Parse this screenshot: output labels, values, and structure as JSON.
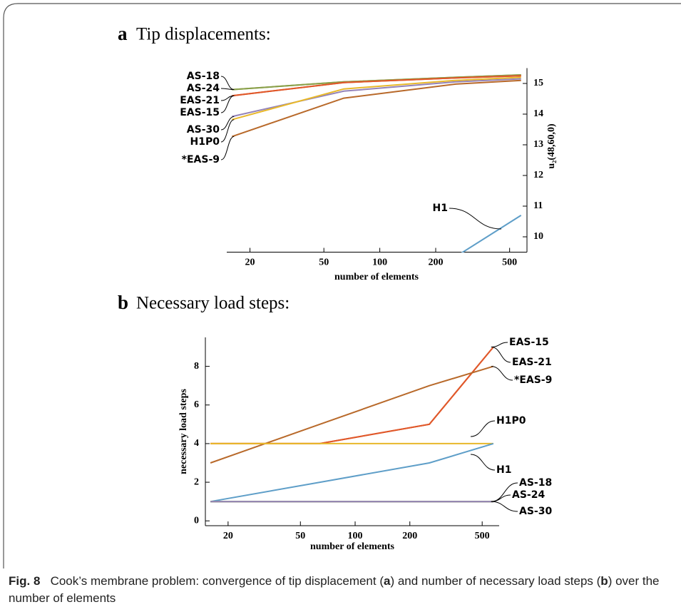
{
  "chart_data": [
    {
      "type": "line",
      "label": "a",
      "title": "Tip displacements:",
      "xlabel": "number of elements",
      "ylabel": "u₂(48,60,0)",
      "xscale": "log",
      "yaxis_side": "right",
      "x": [
        16,
        64,
        256,
        576
      ],
      "xlim": [
        15,
        620
      ],
      "xticks": [
        20,
        50,
        100,
        200,
        500
      ],
      "ylim": [
        9.5,
        15.5
      ],
      "yticks": [
        10,
        11,
        12,
        13,
        14,
        15
      ],
      "series": [
        {
          "name": "AS-18",
          "color": "#8aa04a",
          "values": [
            14.8,
            15.05,
            15.2,
            15.28
          ]
        },
        {
          "name": "AS-24",
          "color": "#8aa04a",
          "values": [
            14.8,
            15.05,
            15.2,
            15.28
          ]
        },
        {
          "name": "EAS-21",
          "color": "#e0582a",
          "values": [
            14.6,
            15.03,
            15.18,
            15.25
          ]
        },
        {
          "name": "EAS-15",
          "color": "#e0582a",
          "values": [
            14.6,
            15.03,
            15.18,
            15.25
          ]
        },
        {
          "name": "AS-30",
          "color": "#9483b8",
          "values": [
            13.92,
            14.75,
            15.05,
            15.15
          ]
        },
        {
          "name": "H1P0",
          "color": "#e8b82a",
          "values": [
            13.82,
            14.82,
            15.1,
            15.2
          ]
        },
        {
          "name": "*EAS-9",
          "color": "#b8692a",
          "values": [
            13.27,
            14.52,
            14.98,
            15.1
          ]
        },
        {
          "name": "H1",
          "color": "#5e9ec8",
          "values": [
            null,
            null,
            9.35,
            10.7
          ]
        }
      ]
    },
    {
      "type": "line",
      "label": "b",
      "title": "Necessary load steps:",
      "xlabel": "number of elements",
      "ylabel": "necessary load steps",
      "xscale": "log",
      "yaxis_side": "left",
      "x": [
        16,
        64,
        256,
        576
      ],
      "xlim": [
        15,
        620
      ],
      "xticks": [
        20,
        50,
        100,
        200,
        500
      ],
      "ylim": [
        -0.25,
        9.5
      ],
      "yticks": [
        0,
        2,
        4,
        6,
        8
      ],
      "series": [
        {
          "name": "EAS-15",
          "color": "#e0582a",
          "values": [
            4,
            4,
            5,
            9
          ]
        },
        {
          "name": "EAS-21",
          "color": "#e0582a",
          "values": [
            4,
            4,
            5,
            9
          ]
        },
        {
          "name": "*EAS-9",
          "color": "#b8692a",
          "values": [
            3,
            5,
            7,
            8
          ]
        },
        {
          "name": "H1P0",
          "color": "#e8b82a",
          "values": [
            4,
            4,
            4,
            4
          ]
        },
        {
          "name": "H1",
          "color": "#5e9ec8",
          "values": [
            1,
            2,
            3,
            4
          ]
        },
        {
          "name": "AS-18",
          "color": "#8aa04a",
          "values": [
            1,
            1,
            1,
            1
          ]
        },
        {
          "name": "AS-24",
          "color": "#8aa04a",
          "values": [
            1,
            1,
            1,
            1
          ]
        },
        {
          "name": "AS-30",
          "color": "#9483b8",
          "values": [
            1,
            1,
            1,
            1
          ]
        }
      ]
    }
  ],
  "caption": {
    "label": "Fig. 8",
    "parts": [
      "Cook’s membrane problem: convergence of tip displacement (",
      "a",
      ") and number of necessary load steps (",
      "b",
      ") over the number of elements"
    ]
  }
}
